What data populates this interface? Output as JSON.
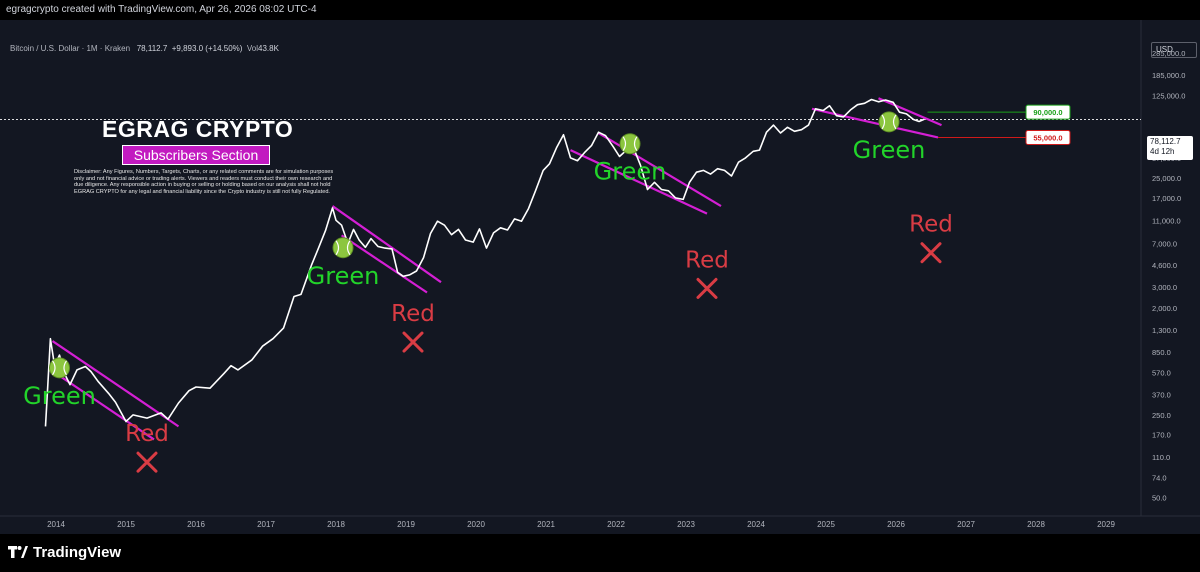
{
  "header": {
    "credit": "egragcrypto created with TradingView.com, Apr 26, 2026 08:02 UTC-4",
    "symbol_line": "Bitcoin / U.S. Dollar · 1M · Kraken",
    "last_price": "78,112.7",
    "change": "+9,893.0 (+14.50%)",
    "volume_label": "Vol",
    "volume_value": "43.8K"
  },
  "overlay": {
    "brand_title": "EGRAG CRYPTO",
    "section_tag": "Subscribers Section",
    "disclaimer": "Disclaimer: Any Figures, Numbers, Targets, Charts, or any related comments are for simulation purposes only and not financial advice or trading alerts. Viewers and readers must conduct their own research and due diligence. Any responsible action in buying or selling or holding based on our analysis shall not hold EGRAG CRYPTO for any legal and financial liability since the Crypto industry is still not fully Regulated."
  },
  "price_scale": {
    "currency": "USD",
    "current_price_label": "78,112.7",
    "countdown": "4d 12h"
  },
  "footer": {
    "logo_text": "TradingView"
  },
  "colors": {
    "background": "#131722",
    "price_line": "#ffffff",
    "channel": "#d41fd4",
    "green_label": "#22d42a",
    "red_label": "#d93c44",
    "target_up": "#1aa01a",
    "target_down": "#d01a1a"
  },
  "chart_data": {
    "type": "line",
    "scale": "log",
    "title": "",
    "xlabel": "",
    "ylabel": "",
    "xlim": [
      2013.2,
      2029.5
    ],
    "ylim": [
      35,
      540000
    ],
    "x_ticks": [
      "2014",
      "2015",
      "2016",
      "2017",
      "2018",
      "2019",
      "2020",
      "2021",
      "2022",
      "2023",
      "2024",
      "2025",
      "2026",
      "2027",
      "2028",
      "2029"
    ],
    "y_ticks": [
      "285,000.0",
      "185,000.0",
      "125,000.0",
      "37,000.0",
      "25,000.0",
      "17,000.0",
      "11,000.0",
      "7,000.0",
      "4,600.0",
      "3,000.0",
      "2,000.0",
      "1,300.0",
      "850.0",
      "570.0",
      "370.0",
      "250.0",
      "170.0",
      "110.0",
      "74.0",
      "50.0"
    ],
    "series": [
      {
        "values": [
          [
            2013.85,
            200
          ],
          [
            2013.92,
            1100
          ],
          [
            2013.98,
            650
          ],
          [
            2014.05,
            800
          ],
          [
            2014.12,
            560
          ],
          [
            2014.2,
            450
          ],
          [
            2014.3,
            600
          ],
          [
            2014.42,
            640
          ],
          [
            2014.5,
            580
          ],
          [
            2014.6,
            480
          ],
          [
            2014.75,
            380
          ],
          [
            2014.85,
            320
          ],
          [
            2015.0,
            220
          ],
          [
            2015.1,
            250
          ],
          [
            2015.3,
            235
          ],
          [
            2015.5,
            260
          ],
          [
            2015.6,
            230
          ],
          [
            2015.75,
            315
          ],
          [
            2015.9,
            400
          ],
          [
            2016.0,
            430
          ],
          [
            2016.2,
            420
          ],
          [
            2016.4,
            560
          ],
          [
            2016.5,
            650
          ],
          [
            2016.6,
            600
          ],
          [
            2016.8,
            730
          ],
          [
            2016.95,
            950
          ],
          [
            2017.1,
            1100
          ],
          [
            2017.25,
            1350
          ],
          [
            2017.4,
            2500
          ],
          [
            2017.5,
            2600
          ],
          [
            2017.65,
            4600
          ],
          [
            2017.75,
            6400
          ],
          [
            2017.85,
            9000
          ],
          [
            2017.95,
            14000
          ],
          [
            2018.0,
            11000
          ],
          [
            2018.08,
            10000
          ],
          [
            2018.17,
            7000
          ],
          [
            2018.25,
            9200
          ],
          [
            2018.33,
            7500
          ],
          [
            2018.42,
            6500
          ],
          [
            2018.5,
            7700
          ],
          [
            2018.6,
            6600
          ],
          [
            2018.7,
            6400
          ],
          [
            2018.8,
            6300
          ],
          [
            2018.88,
            4000
          ],
          [
            2018.96,
            3700
          ],
          [
            2019.05,
            3800
          ],
          [
            2019.15,
            4100
          ],
          [
            2019.25,
            5300
          ],
          [
            2019.35,
            8500
          ],
          [
            2019.45,
            10800
          ],
          [
            2019.55,
            10000
          ],
          [
            2019.65,
            8300
          ],
          [
            2019.75,
            9200
          ],
          [
            2019.85,
            7500
          ],
          [
            2019.96,
            7200
          ],
          [
            2020.05,
            9300
          ],
          [
            2020.15,
            6400
          ],
          [
            2020.25,
            8600
          ],
          [
            2020.35,
            9500
          ],
          [
            2020.45,
            9100
          ],
          [
            2020.55,
            11300
          ],
          [
            2020.65,
            10800
          ],
          [
            2020.75,
            13800
          ],
          [
            2020.85,
            19500
          ],
          [
            2020.96,
            29000
          ],
          [
            2021.05,
            33000
          ],
          [
            2021.15,
            45000
          ],
          [
            2021.25,
            58000
          ],
          [
            2021.35,
            37000
          ],
          [
            2021.45,
            35000
          ],
          [
            2021.55,
            41000
          ],
          [
            2021.65,
            47000
          ],
          [
            2021.75,
            61000
          ],
          [
            2021.85,
            57000
          ],
          [
            2021.96,
            46000
          ],
          [
            2022.05,
            38000
          ],
          [
            2022.15,
            43000
          ],
          [
            2022.25,
            45000
          ],
          [
            2022.35,
            32000
          ],
          [
            2022.45,
            20000
          ],
          [
            2022.55,
            23000
          ],
          [
            2022.65,
            20000
          ],
          [
            2022.75,
            19500
          ],
          [
            2022.85,
            17000
          ],
          [
            2022.96,
            16500
          ],
          [
            2023.05,
            23000
          ],
          [
            2023.15,
            28000
          ],
          [
            2023.25,
            29000
          ],
          [
            2023.35,
            27000
          ],
          [
            2023.45,
            30000
          ],
          [
            2023.55,
            29000
          ],
          [
            2023.65,
            26000
          ],
          [
            2023.75,
            34000
          ],
          [
            2023.85,
            37000
          ],
          [
            2023.96,
            42000
          ],
          [
            2024.05,
            43000
          ],
          [
            2024.15,
            61000
          ],
          [
            2024.25,
            70000
          ],
          [
            2024.35,
            60000
          ],
          [
            2024.45,
            67000
          ],
          [
            2024.55,
            62000
          ],
          [
            2024.65,
            64000
          ],
          [
            2024.75,
            70000
          ],
          [
            2024.85,
            96000
          ],
          [
            2024.96,
            93000
          ],
          [
            2025.05,
            102000
          ],
          [
            2025.15,
            84000
          ],
          [
            2025.25,
            82000
          ],
          [
            2025.35,
            94000
          ],
          [
            2025.45,
            104000
          ],
          [
            2025.55,
            107000
          ],
          [
            2025.65,
            115000
          ],
          [
            2025.75,
            110000
          ],
          [
            2025.85,
            114000
          ],
          [
            2025.96,
            109000
          ],
          [
            2026.05,
            90000
          ],
          [
            2026.15,
            87000
          ],
          [
            2026.25,
            78000
          ],
          [
            2026.33,
            75000
          ],
          [
            2026.4,
            78112.7
          ]
        ]
      }
    ],
    "channels": [
      {
        "upper": [
          [
            2013.95,
            1050
          ],
          [
            2015.75,
            200
          ]
        ],
        "lower": [
          [
            2014.0,
            560
          ],
          [
            2015.4,
            155
          ]
        ]
      },
      {
        "upper": [
          [
            2017.95,
            14500
          ],
          [
            2019.5,
            3300
          ]
        ],
        "lower": [
          [
            2018.08,
            8200
          ],
          [
            2019.3,
            2700
          ]
        ]
      },
      {
        "upper": [
          [
            2021.75,
            60000
          ],
          [
            2023.5,
            14500
          ]
        ],
        "lower": [
          [
            2021.35,
            43000
          ],
          [
            2023.3,
            12500
          ]
        ]
      },
      {
        "upper": [
          [
            2025.75,
            118000
          ],
          [
            2026.65,
            70000
          ]
        ],
        "lower": [
          [
            2024.8,
            96000
          ],
          [
            2026.6,
            55000
          ]
        ]
      }
    ],
    "annotations": [
      {
        "green_label": "Green",
        "red_label": "Red",
        "green_at": [
          2014.05,
          310
        ],
        "red_at": [
          2015.3,
          150
        ]
      },
      {
        "green_label": "Green",
        "red_label": "Red",
        "green_at": [
          2018.1,
          3200
        ],
        "red_at": [
          2019.1,
          1550
        ]
      },
      {
        "green_label": "Green",
        "red_label": "Red",
        "green_at": [
          2022.2,
          24200
        ],
        "red_at": [
          2023.3,
          4400
        ]
      },
      {
        "green_label": "Green",
        "red_label": "Red",
        "green_at": [
          2025.9,
          37000
        ],
        "red_at": [
          2026.5,
          8800
        ]
      }
    ],
    "target_lines": [
      {
        "label": "90,000.0",
        "value": 90000,
        "from_x": 2026.45,
        "direction": "up"
      },
      {
        "label": "55,000.0",
        "value": 55000,
        "from_x": 2026.6,
        "direction": "down"
      }
    ],
    "current_price": 78112.7,
    "grid": false
  }
}
